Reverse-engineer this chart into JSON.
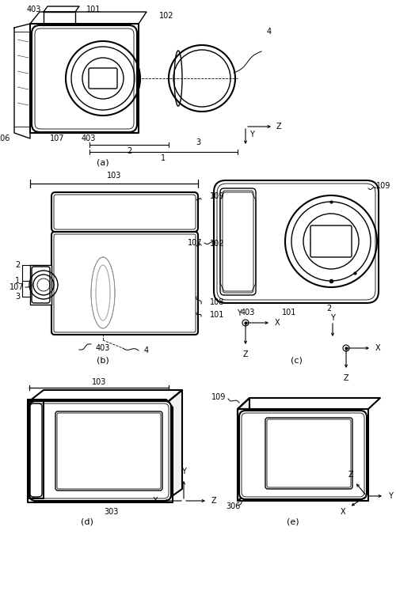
{
  "bg": "#ffffff",
  "lc": "#000000",
  "fig_w": 5.0,
  "fig_h": 7.47,
  "dpi": 100,
  "fs": 7,
  "fsp": 8,
  "lw_thick": 1.5,
  "lw_med": 1.0,
  "lw_thin": 0.6,
  "lw_vt": 0.35,
  "panels": [
    "(a)",
    "(b)",
    "(c)",
    "(d)",
    "(e)"
  ]
}
